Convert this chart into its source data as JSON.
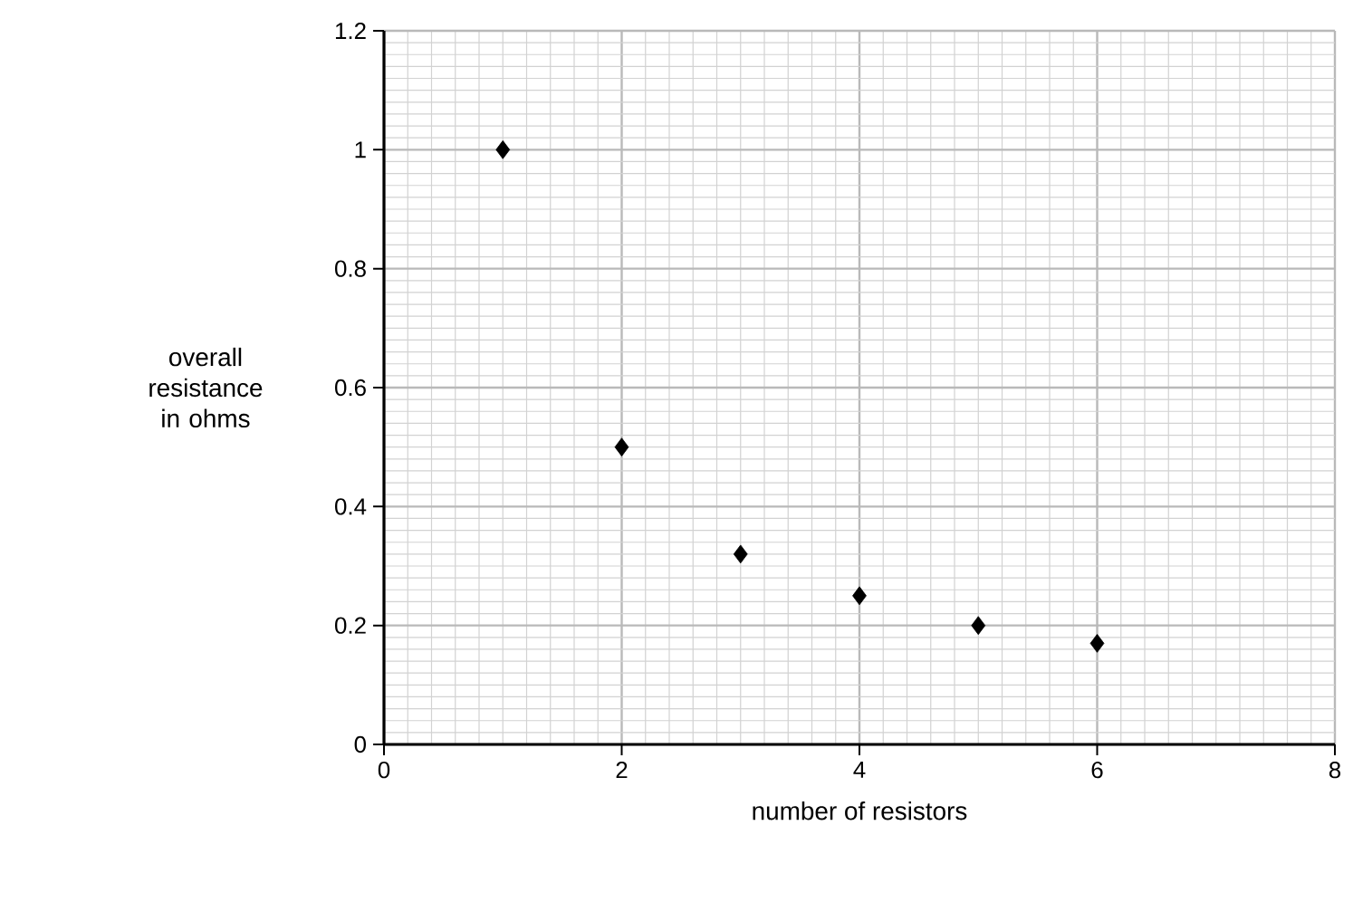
{
  "chart_data": {
    "type": "scatter",
    "xlabel": "number of resistors",
    "ylabel": "overall resistance in ohms",
    "x": [
      1,
      2,
      3,
      4,
      5,
      6
    ],
    "values": [
      1,
      0.5,
      0.32,
      0.25,
      0.2,
      0.17
    ],
    "color": "#000000",
    "marker": "diamond",
    "xlim": [
      0,
      8
    ],
    "ylim": [
      0,
      1.2
    ],
    "xticks": [
      0,
      2,
      4,
      6,
      8
    ],
    "yticks": [
      0,
      0.2,
      0.4,
      0.6,
      0.8,
      1,
      1.2
    ],
    "grid": true
  }
}
